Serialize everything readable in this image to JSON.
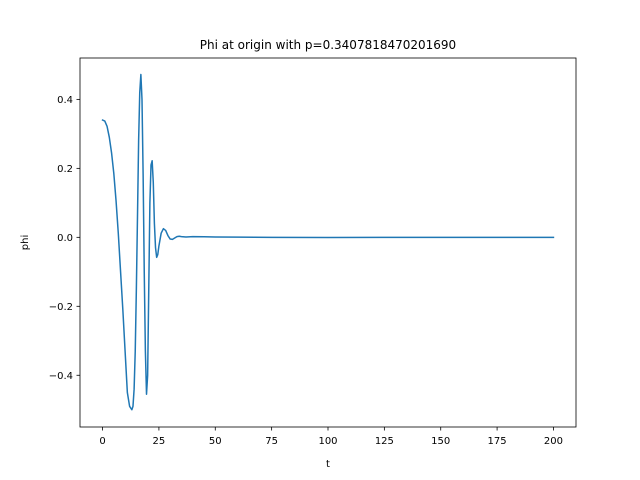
{
  "chart_data": {
    "type": "line",
    "title": "Phi at origin with p=0.3407818470201690",
    "xlabel": "t",
    "ylabel": "phi",
    "xlim": [
      -10,
      210
    ],
    "ylim": [
      -0.55,
      0.52
    ],
    "xticks": [
      0,
      25,
      50,
      75,
      100,
      125,
      150,
      175,
      200
    ],
    "xtick_labels": [
      "0",
      "25",
      "50",
      "75",
      "100",
      "125",
      "150",
      "175",
      "200"
    ],
    "yticks": [
      -0.4,
      -0.2,
      0.0,
      0.2,
      0.4
    ],
    "ytick_labels": [
      "−0.4",
      "−0.2",
      "0.0",
      "0.2",
      "0.4"
    ],
    "grid": false,
    "legend": "none",
    "series": [
      {
        "color": "#1f77b4",
        "x": [
          0,
          1,
          2,
          3,
          4,
          5,
          6,
          7,
          8,
          9,
          10,
          11,
          12,
          13,
          13.5,
          14,
          14.5,
          15,
          15.5,
          16,
          16.5,
          17,
          17.5,
          18,
          18.5,
          19,
          19.5,
          20,
          20.5,
          21,
          21.5,
          22,
          22.5,
          23,
          23.5,
          24,
          24.5,
          25,
          26,
          27,
          28,
          29,
          30,
          31,
          32,
          33,
          34,
          35,
          37,
          40,
          45,
          50,
          60,
          75,
          100,
          125,
          150,
          175,
          200
        ],
        "y": [
          0.34,
          0.337,
          0.322,
          0.29,
          0.245,
          0.185,
          0.105,
          0.01,
          -0.1,
          -0.21,
          -0.33,
          -0.45,
          -0.49,
          -0.5,
          -0.49,
          -0.44,
          -0.33,
          -0.15,
          0.06,
          0.28,
          0.42,
          0.472,
          0.4,
          0.18,
          -0.1,
          -0.33,
          -0.455,
          -0.4,
          -0.15,
          0.1,
          0.21,
          0.222,
          0.16,
          0.04,
          -0.03,
          -0.058,
          -0.05,
          -0.025,
          0.012,
          0.025,
          0.02,
          0.005,
          -0.005,
          -0.006,
          -0.002,
          0.002,
          0.003,
          0.002,
          0.001,
          0.002,
          0.0015,
          0.001,
          0.0005,
          0.0,
          -0.0005,
          0.0,
          0.0,
          0.0,
          0.0
        ]
      }
    ]
  }
}
